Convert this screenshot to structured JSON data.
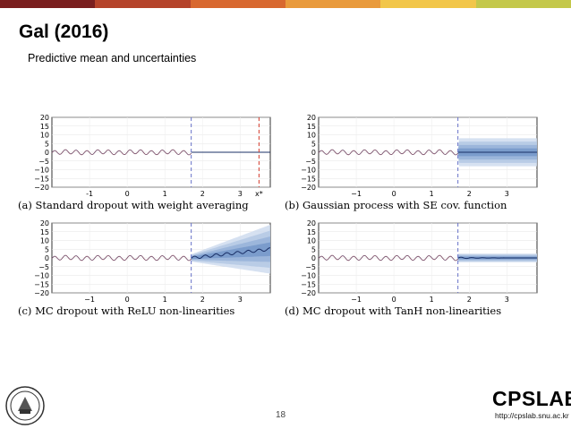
{
  "slide": {
    "title": "Gal (2016)",
    "subtitle": "Predictive mean and uncertainties",
    "page_number": "18",
    "topbar_colors": [
      "#7a1f1f",
      "#b5432a",
      "#d8682f",
      "#e99a3c",
      "#f2c649",
      "#c4c84a"
    ],
    "logo": {
      "name": "CPSLAB",
      "url": "http://cpslab.snu.ac.kr"
    }
  },
  "chart_data": [
    {
      "type": "line",
      "panel": "a",
      "caption": "(a) Standard dropout with weight averaging",
      "x_ticks": [
        "-1",
        "0",
        "1",
        "2",
        "3",
        "x*"
      ],
      "y_ticks": [
        "20",
        "15",
        "10",
        "5",
        "0",
        "−5",
        "−10",
        "−15",
        "−20"
      ],
      "xlim": [
        -2,
        3.8
      ],
      "ylim": [
        -20,
        20
      ],
      "train_end": 1.7,
      "test_point": 3.5,
      "uncertainty": "none",
      "grid": true
    },
    {
      "type": "line",
      "panel": "b",
      "caption": "(b) Gaussian process with SE cov. function",
      "x_ticks": [
        "−1",
        "0",
        "1",
        "2",
        "3"
      ],
      "y_ticks": [
        "20",
        "15",
        "10",
        "5",
        "0",
        "−5",
        "−10",
        "−15",
        "−20"
      ],
      "xlim": [
        -2,
        3.8
      ],
      "ylim": [
        -20,
        20
      ],
      "train_end": 1.7,
      "uncertainty": "constant",
      "band_max": 8,
      "grid": true
    },
    {
      "type": "line",
      "panel": "c",
      "caption": "(c) MC dropout with ReLU non-linearities",
      "x_ticks": [
        "−1",
        "0",
        "1",
        "2",
        "3"
      ],
      "y_ticks": [
        "20",
        "15",
        "10",
        "5",
        "0",
        "−5",
        "−10",
        "−15",
        "−20"
      ],
      "xlim": [
        -2,
        3.8
      ],
      "ylim": [
        -20,
        20
      ],
      "train_end": 1.7,
      "uncertainty": "growing",
      "band_max": 14,
      "trend_end": 5,
      "grid": true
    },
    {
      "type": "line",
      "panel": "d",
      "caption": "(d) MC dropout with TanH non-linearities",
      "x_ticks": [
        "−1",
        "0",
        "1",
        "2",
        "3"
      ],
      "y_ticks": [
        "20",
        "15",
        "10",
        "5",
        "0",
        "−5",
        "−10",
        "−15",
        "−20"
      ],
      "xlim": [
        -2,
        3.8
      ],
      "ylim": [
        -20,
        20
      ],
      "train_end": 1.7,
      "uncertainty": "small",
      "band_max": 2.5,
      "grid": true
    }
  ]
}
